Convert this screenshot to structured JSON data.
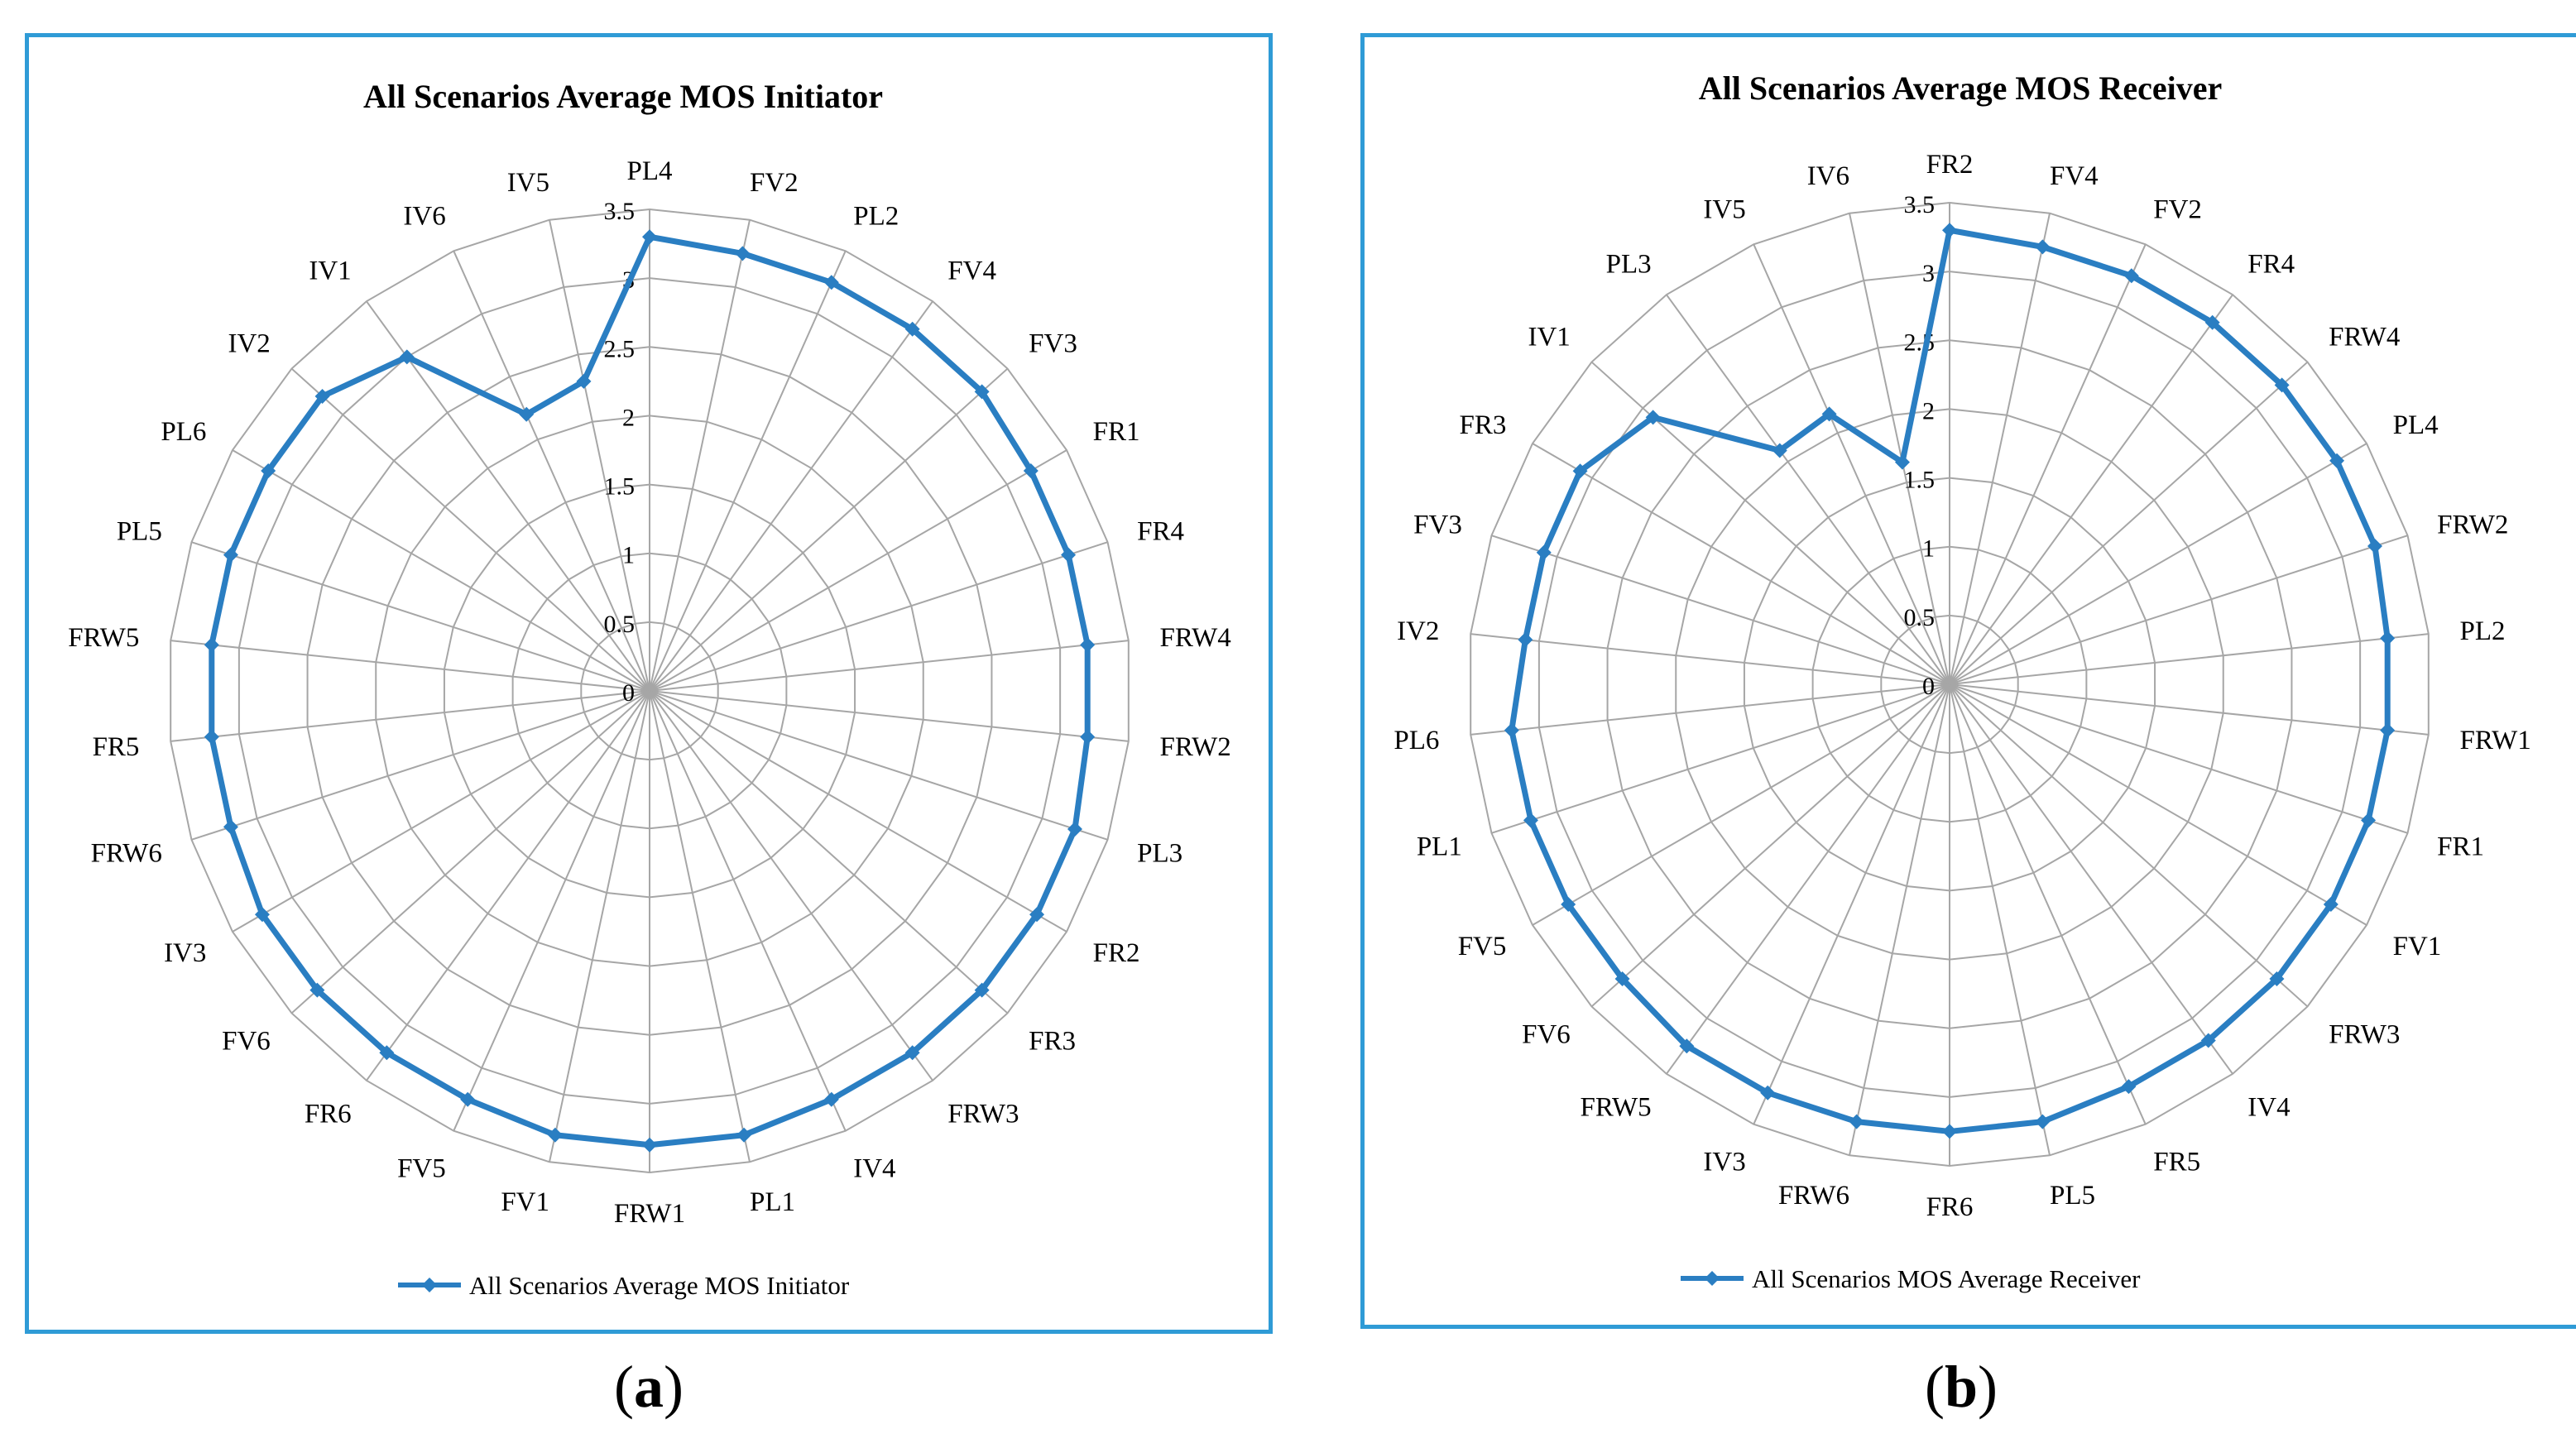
{
  "chart_data": [
    {
      "type": "radar",
      "title": "All Scenarios Average MOS Initiator",
      "categories": [
        "PL4",
        "FV2",
        "PL2",
        "FV4",
        "FV3",
        "FR1",
        "FR4",
        "FRW4",
        "FRW2",
        "PL3",
        "FR2",
        "FR3",
        "FRW3",
        "IV4",
        "PL1",
        "FRW1",
        "FV1",
        "FV5",
        "FR6",
        "FV6",
        "IV3",
        "FRW6",
        "FR5",
        "FRW5",
        "PL5",
        "PL6",
        "IV2",
        "IV1",
        "IV6",
        "IV5"
      ],
      "series": [
        {
          "name": "All Scenarios Average MOS Initiator",
          "values": [
            3.3,
            3.25,
            3.25,
            3.25,
            3.25,
            3.2,
            3.2,
            3.2,
            3.2,
            3.25,
            3.25,
            3.25,
            3.25,
            3.25,
            3.3,
            3.3,
            3.3,
            3.25,
            3.25,
            3.25,
            3.25,
            3.2,
            3.2,
            3.2,
            3.2,
            3.2,
            3.2,
            3.0,
            2.2,
            2.3
          ],
          "color": "#2a7ec2"
        }
      ],
      "axis_ticks": [
        "0",
        "0.5",
        "1",
        "1.5",
        "2",
        "2.5",
        "3",
        "3.5"
      ],
      "rlim": [
        0,
        3.5
      ],
      "grid": true,
      "legend_position": "bottom"
    },
    {
      "type": "radar",
      "title": "All Scenarios Average MOS Receiver",
      "categories": [
        "FR2",
        "FV4",
        "FV2",
        "FR4",
        "FRW4",
        "PL4",
        "FRW2",
        "PL2",
        "FRW1",
        "FR1",
        "FV1",
        "FRW3",
        "IV4",
        "FR5",
        "PL5",
        "FR6",
        "FRW6",
        "IV3",
        "FRW5",
        "FV6",
        "FV5",
        "PL1",
        "PL6",
        "IV2",
        "FV3",
        "FR3",
        "IV1",
        "PL3",
        "IV5",
        "IV6"
      ],
      "series": [
        {
          "name": "All Scenarios MOS Average Receiver",
          "values": [
            3.3,
            3.25,
            3.25,
            3.25,
            3.25,
            3.25,
            3.25,
            3.2,
            3.2,
            3.2,
            3.2,
            3.2,
            3.2,
            3.2,
            3.25,
            3.25,
            3.25,
            3.25,
            3.25,
            3.2,
            3.2,
            3.2,
            3.2,
            3.1,
            3.1,
            3.1,
            2.9,
            2.1,
            2.15,
            1.65
          ],
          "color": "#2a7ec2"
        }
      ],
      "axis_ticks": [
        "0",
        "0.5",
        "1",
        "1.5",
        "2",
        "2.5",
        "3",
        "3.5"
      ],
      "rlim": [
        0,
        3.5
      ],
      "grid": true,
      "legend_position": "bottom"
    }
  ],
  "captions": [
    {
      "label": "a"
    },
    {
      "label": "b"
    }
  ]
}
